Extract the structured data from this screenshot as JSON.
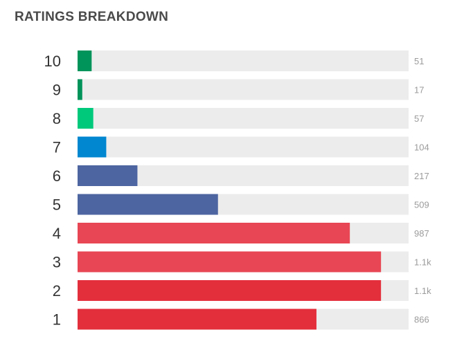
{
  "header": {
    "title": "RATINGS BREAKDOWN"
  },
  "colors": {
    "track": "#ececec",
    "title": "#4a4a4a",
    "rating_text": "#333333",
    "count_text": "#9b9b9b"
  },
  "chart_data": {
    "type": "bar",
    "orientation": "horizontal",
    "title": "RATINGS BREAKDOWN",
    "xlim": [
      0,
      1200
    ],
    "grid": false,
    "legend": "none",
    "categories": [
      "10",
      "9",
      "8",
      "7",
      "6",
      "5",
      "4",
      "3",
      "2",
      "1"
    ],
    "values": [
      51,
      17,
      57,
      104,
      217,
      509,
      987,
      1100,
      1100,
      866
    ],
    "value_labels": [
      "51",
      "17",
      "57",
      "104",
      "217",
      "509",
      "987",
      "1.1k",
      "1.1k",
      "866"
    ],
    "bar_colors": [
      "#00935a",
      "#00935a",
      "#00c97c",
      "#0087d0",
      "#4d65a0",
      "#4d65a0",
      "#e84654",
      "#e84654",
      "#e32f3c",
      "#e32f3c"
    ]
  }
}
